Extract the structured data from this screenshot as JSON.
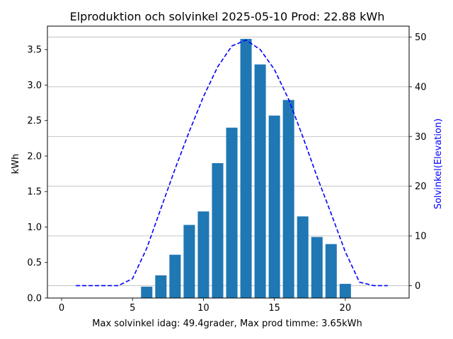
{
  "chart_data": {
    "type": "bar",
    "title": "Elproduktion och solvinkel 2025-05-10 Prod: 22.88 kWh",
    "xlabel": "Max solvinkel idag: 49.4grader, Max prod timme: 3.65kWh",
    "ylabel": "kWh",
    "ylabel_right": "Solvinkel(Elevation)",
    "xlim": [
      -1,
      24.5
    ],
    "ylim": [
      0,
      3.83
    ],
    "ylim_right": [
      -2.5,
      52.2
    ],
    "x_ticks": [
      0,
      5,
      10,
      15,
      20
    ],
    "y_ticks": [
      0.0,
      0.5,
      1.0,
      1.5,
      2.0,
      2.5,
      3.0,
      3.5
    ],
    "y_ticks_right": [
      0,
      10,
      20,
      30,
      40,
      50
    ],
    "grid": "right-axis horizontal",
    "colors": {
      "bars": "#1f77b4",
      "elevation": "#0000ff",
      "grid": "#b0b0b0"
    },
    "series": [
      {
        "axis": "left",
        "type": "bar",
        "x": [
          6,
          7,
          8,
          9,
          10,
          11,
          12,
          13,
          14,
          15,
          16,
          17,
          18,
          19,
          20
        ],
        "values": [
          0.16,
          0.32,
          0.61,
          1.03,
          1.22,
          1.9,
          2.4,
          3.65,
          3.29,
          2.57,
          2.79,
          1.15,
          0.86,
          0.76,
          0.2
        ]
      },
      {
        "axis": "right",
        "type": "line",
        "style": "dashed",
        "x": [
          1,
          2,
          3,
          4,
          5,
          6,
          7,
          8,
          9,
          10,
          11,
          12,
          13,
          14,
          15,
          16,
          17,
          18,
          19,
          20,
          21,
          22,
          23
        ],
        "values": [
          0,
          0,
          0,
          0,
          1.4,
          7.5,
          15.5,
          23.5,
          31.0,
          38.0,
          44.0,
          48.2,
          49.4,
          47.5,
          43.5,
          37.5,
          30.0,
          22.0,
          14.5,
          6.8,
          0.7,
          0,
          0
        ]
      }
    ]
  }
}
